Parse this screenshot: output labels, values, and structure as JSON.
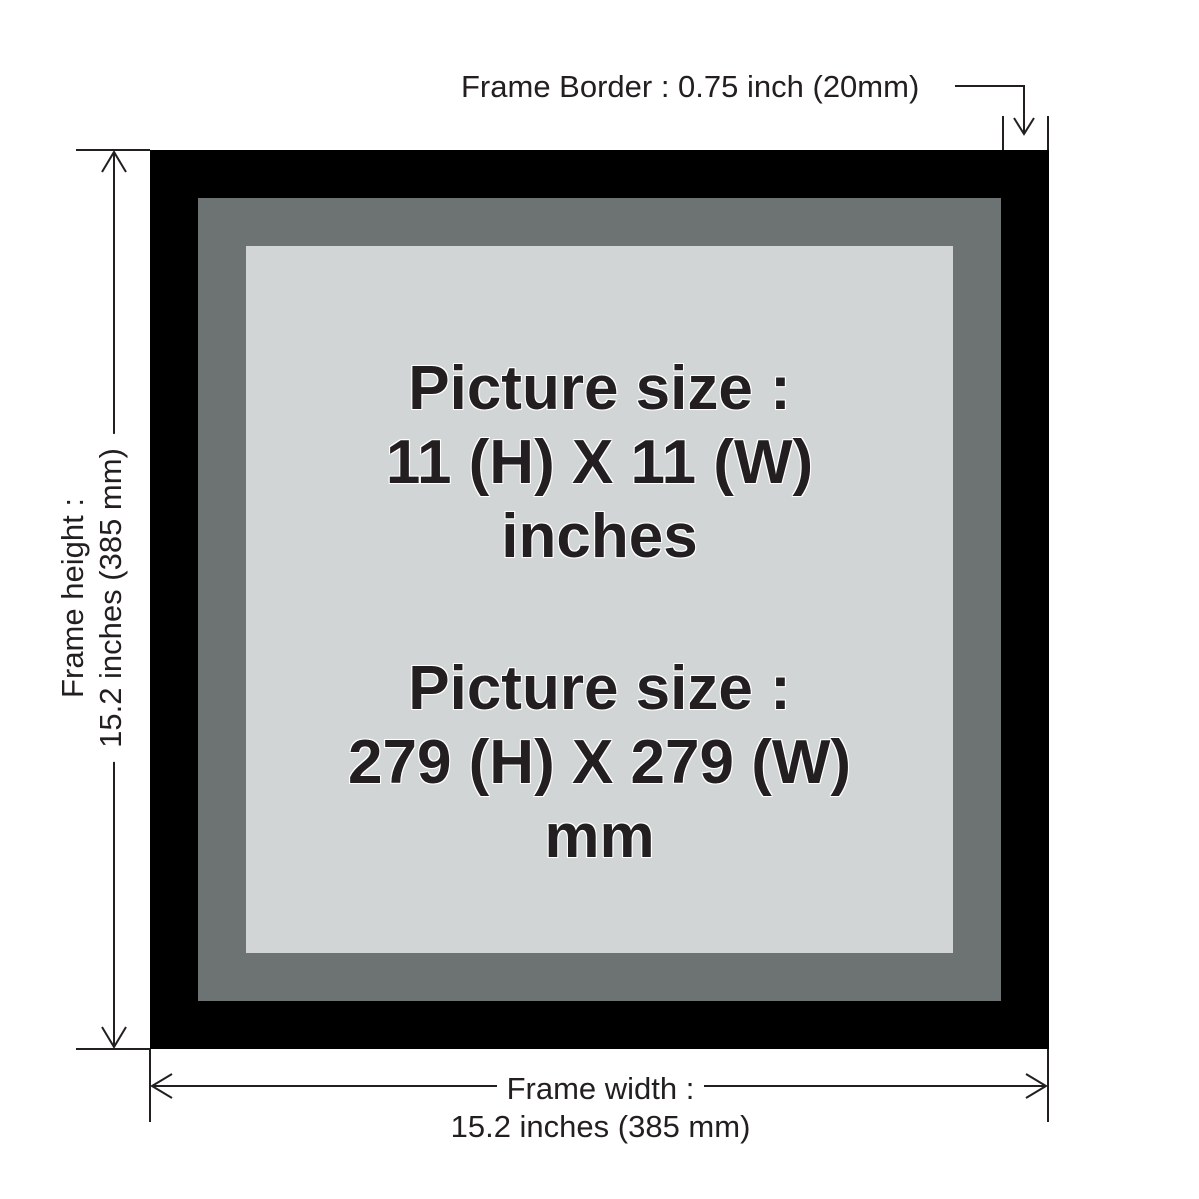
{
  "colors": {
    "frame": "#000000",
    "mat": "#6d7272",
    "picture": "#d1d5d6",
    "text": "#231f20",
    "background": "#ffffff"
  },
  "labels": {
    "frame_border": "Frame Border : 0.75 inch (20mm)",
    "frame_width_line1": "Frame width :",
    "frame_width_line2": "15.2 inches (385 mm)",
    "frame_height_line1": "Frame height :",
    "frame_height_line2": "15.2 inches (385 mm)"
  },
  "picture_inches": {
    "line1": "Picture size :",
    "line2": "11 (H) X 11 (W)",
    "line3": "inches"
  },
  "picture_mm": {
    "line1": "Picture size :",
    "line2": "279 (H) X 279 (W)",
    "line3": "mm"
  }
}
